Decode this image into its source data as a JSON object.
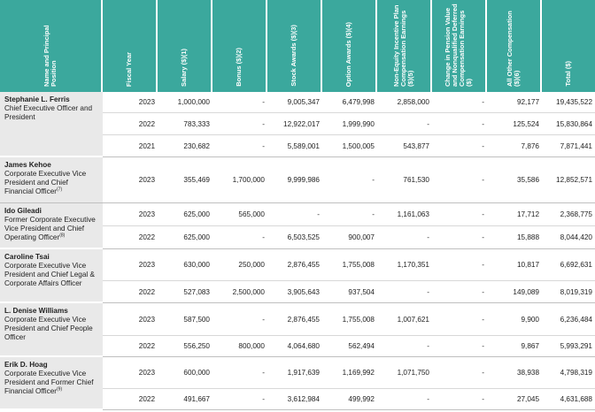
{
  "headers": {
    "name": "Name and Principal Position",
    "fiscal_year": "Fiscal Year",
    "salary": "Salary ($)(1)",
    "bonus": "Bonus ($)(2)",
    "stock": "Stock Awards ($)(3)",
    "option": "Option Awards ($)(4)",
    "non_equity": "Non-Equity Incentive Plan Compensation Earnings ($)(5)",
    "pension": "Change in Pension Value and Nonqualified Deferred Compensation Earnings ($)",
    "all_other": "All Other Compensation ($)(6)",
    "total": "Total ($)"
  },
  "executives": [
    {
      "name": "Stephanie L. Ferris",
      "position": "Chief Executive Officer and President",
      "footnote": "",
      "rows": [
        {
          "year": "2023",
          "salary": "1,000,000",
          "bonus": "-",
          "stock": "9,005,347",
          "option": "6,479,998",
          "non_equity": "2,858,000",
          "pension": "-",
          "all_other": "92,177",
          "total": "19,435,522"
        },
        {
          "year": "2022",
          "salary": "783,333",
          "bonus": "-",
          "stock": "12,922,017",
          "option": "1,999,990",
          "non_equity": "-",
          "pension": "-",
          "all_other": "125,524",
          "total": "15,830,864"
        },
        {
          "year": "2021",
          "salary": "230,682",
          "bonus": "-",
          "stock": "5,589,001",
          "option": "1,500,005",
          "non_equity": "543,877",
          "pension": "-",
          "all_other": "7,876",
          "total": "7,871,441"
        }
      ]
    },
    {
      "name": "James Kehoe",
      "position": "Corporate Executive Vice President and Chief Financial Officer",
      "footnote": "(7)",
      "rows": [
        {
          "year": "2023",
          "salary": "355,469",
          "bonus": "1,700,000",
          "stock": "9,999,986",
          "option": "-",
          "non_equity": "761,530",
          "pension": "-",
          "all_other": "35,586",
          "total": "12,852,571"
        }
      ]
    },
    {
      "name": "Ido Gileadi",
      "position": "Former Corporate Executive Vice President and Chief Operating Officer",
      "footnote": "(8)",
      "rows": [
        {
          "year": "2023",
          "salary": "625,000",
          "bonus": "565,000",
          "stock": "-",
          "option": "-",
          "non_equity": "1,161,063",
          "pension": "-",
          "all_other": "17,712",
          "total": "2,368,775"
        },
        {
          "year": "2022",
          "salary": "625,000",
          "bonus": "-",
          "stock": "6,503,525",
          "option": "900,007",
          "non_equity": "-",
          "pension": "-",
          "all_other": "15,888",
          "total": "8,044,420"
        }
      ]
    },
    {
      "name": "Caroline Tsai",
      "position": "Corporate Executive Vice President and Chief Legal & Corporate Affairs Officer",
      "footnote": "",
      "rows": [
        {
          "year": "2023",
          "salary": "630,000",
          "bonus": "250,000",
          "stock": "2,876,455",
          "option": "1,755,008",
          "non_equity": "1,170,351",
          "pension": "-",
          "all_other": "10,817",
          "total": "6,692,631"
        },
        {
          "year": "2022",
          "salary": "527,083",
          "bonus": "2,500,000",
          "stock": "3,905,643",
          "option": "937,504",
          "non_equity": "-",
          "pension": "-",
          "all_other": "149,089",
          "total": "8,019,319"
        }
      ]
    },
    {
      "name": "L. Denise Williams",
      "position": "Corporate Executive Vice President and Chief People Officer",
      "footnote": "",
      "rows": [
        {
          "year": "2023",
          "salary": "587,500",
          "bonus": "-",
          "stock": "2,876,455",
          "option": "1,755,008",
          "non_equity": "1,007,621",
          "pension": "-",
          "all_other": "9,900",
          "total": "6,236,484"
        },
        {
          "year": "2022",
          "salary": "556,250",
          "bonus": "800,000",
          "stock": "4,064,680",
          "option": "562,494",
          "non_equity": "-",
          "pension": "-",
          "all_other": "9,867",
          "total": "5,993,291"
        }
      ]
    },
    {
      "name": "Erik D. Hoag",
      "position": "Corporate Executive Vice President and Former Chief Financial Officer",
      "footnote": "(9)",
      "rows": [
        {
          "year": "2023",
          "salary": "600,000",
          "bonus": "-",
          "stock": "1,917,639",
          "option": "1,169,992",
          "non_equity": "1,071,750",
          "pension": "-",
          "all_other": "38,938",
          "total": "4,798,319"
        },
        {
          "year": "2022",
          "salary": "491,667",
          "bonus": "-",
          "stock": "3,612,984",
          "option": "499,992",
          "non_equity": "-",
          "pension": "-",
          "all_other": "27,045",
          "total": "4,631,688"
        }
      ]
    }
  ]
}
